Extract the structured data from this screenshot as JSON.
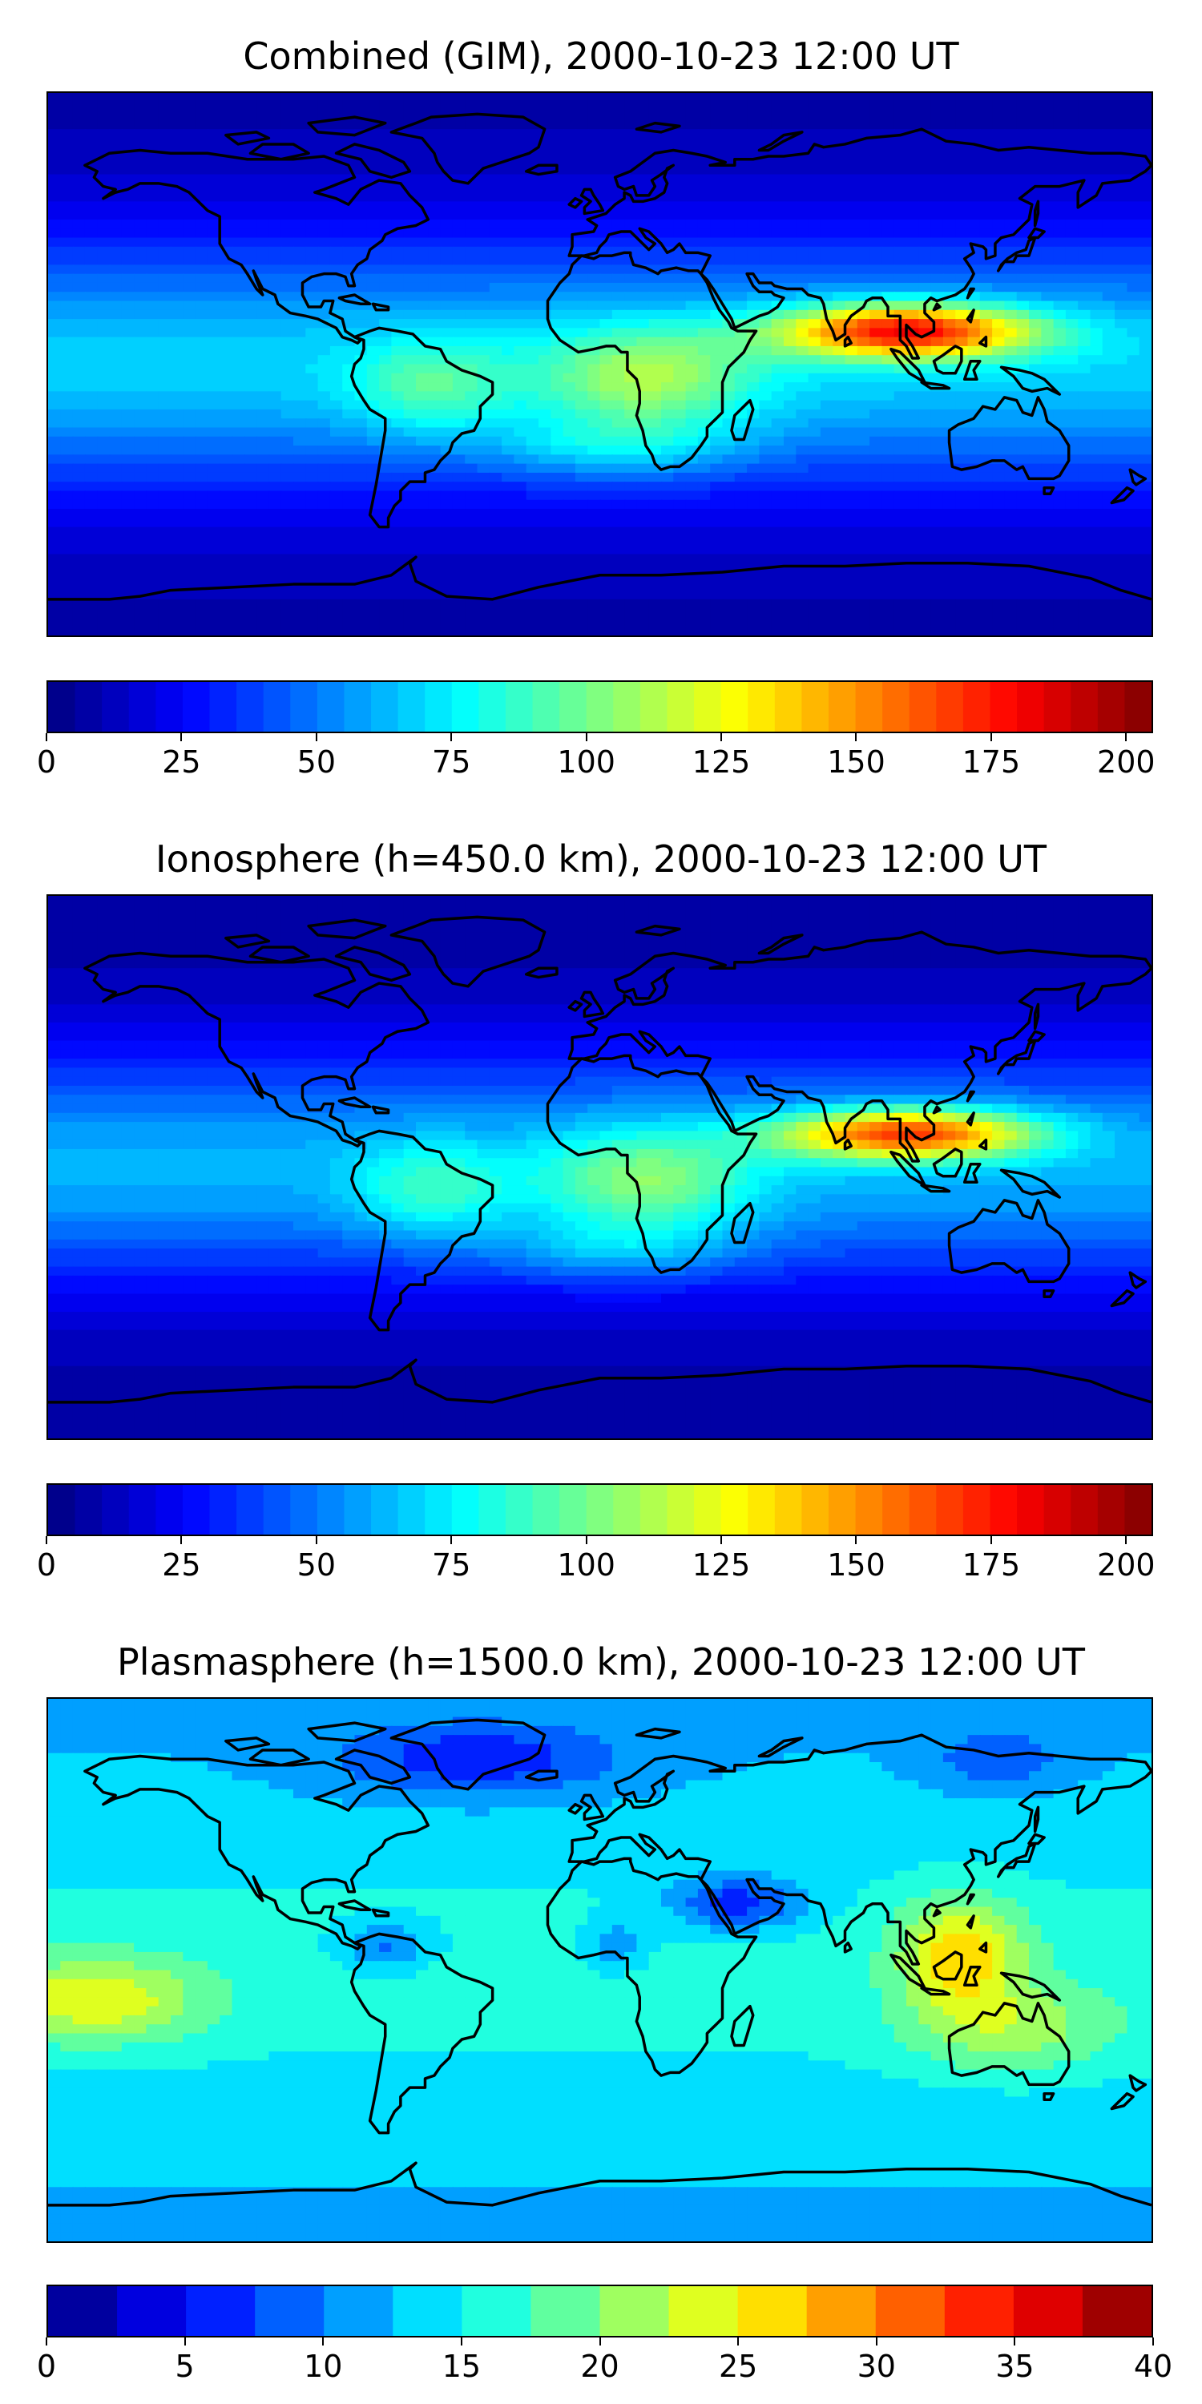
{
  "colormap": "jet",
  "colors": {
    "text": "#000000",
    "coastline": "#000000",
    "background": "#ffffff"
  },
  "chart_data": [
    {
      "type": "heatmap",
      "title": "Combined (GIM), 2000-10-23 12:00 UT",
      "colorbar": {
        "min": 0,
        "max": 205,
        "step": 5,
        "ticks": [
          "0",
          "25",
          "50",
          "75",
          "100",
          "125",
          "150",
          "175",
          "200"
        ]
      },
      "features": [
        {
          "region": "equatorial anomaly Africa–Asia–Pacific",
          "peak_value": 185
        },
        {
          "region": "South America / Atlantic",
          "peak_value": 95
        },
        {
          "region": "polar regions",
          "min_value": 5
        }
      ],
      "grid": false
    },
    {
      "type": "heatmap",
      "title": "Ionosphere  (h=450.0 km), 2000-10-23 12:00 UT",
      "colorbar": {
        "min": 0,
        "max": 205,
        "step": 5,
        "ticks": [
          "0",
          "25",
          "50",
          "75",
          "100",
          "125",
          "150",
          "175",
          "200"
        ]
      },
      "features": [
        {
          "region": "equatorial anomaly Africa–Asia–Pacific",
          "peak_value": 175
        },
        {
          "region": "South America / Atlantic",
          "peak_value": 90
        },
        {
          "region": "polar regions",
          "min_value": 5
        }
      ],
      "grid": false
    },
    {
      "type": "heatmap",
      "title": "Plasmasphere (h=1500.0 km), 2000-10-23 12:00 UT",
      "colorbar": {
        "min": 0,
        "max": 40,
        "step": 2.5,
        "ticks": [
          "0",
          "5",
          "10",
          "15",
          "20",
          "25",
          "30",
          "35",
          "40"
        ]
      },
      "features": [
        {
          "region": "East Asia / Indonesia",
          "peak_value": 28
        },
        {
          "region": "Eastern Pacific",
          "peak_value": 24
        },
        {
          "region": "Arabia / Sahara minimum",
          "min_value": 2.5
        },
        {
          "region": "Arctic",
          "min_value": 2.5
        }
      ],
      "grid": false
    }
  ]
}
